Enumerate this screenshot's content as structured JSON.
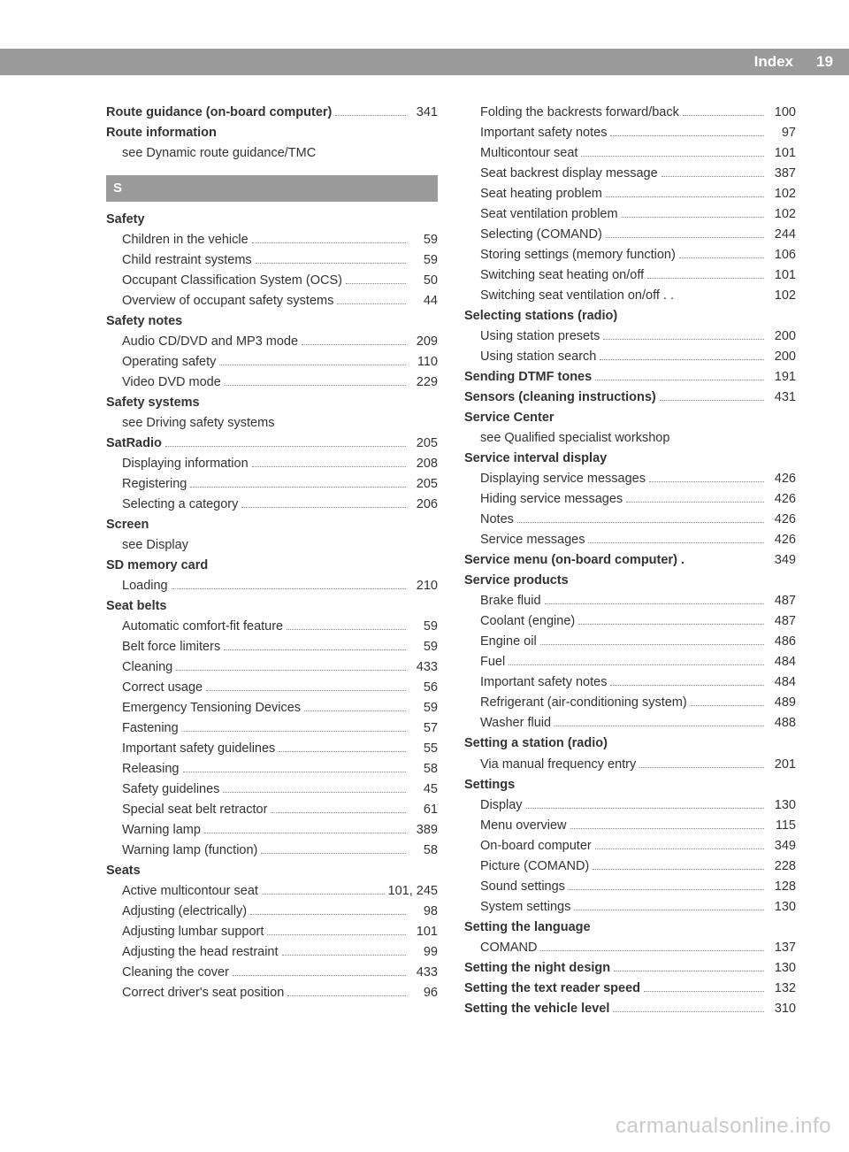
{
  "header": {
    "title": "Index",
    "page_number": "19"
  },
  "watermark": "carmanualsonline.info",
  "section_letter": "S",
  "col1": [
    {
      "t": "main-bold",
      "label": "Route guidance (on-board computer)",
      "page": "341"
    },
    {
      "t": "main-bold",
      "label": "Route information"
    },
    {
      "t": "sub",
      "label": "see Dynamic route guidance/TMC"
    },
    {
      "t": "letter",
      "label": "S"
    },
    {
      "t": "main-bold",
      "label": "Safety"
    },
    {
      "t": "sub",
      "label": "Children in the vehicle",
      "page": "59"
    },
    {
      "t": "sub",
      "label": "Child restraint systems",
      "page": "59"
    },
    {
      "t": "sub",
      "label": "Occupant Classification System (OCS)",
      "page": "50"
    },
    {
      "t": "sub",
      "label": "Overview of occupant safety systems",
      "page": "44"
    },
    {
      "t": "main-bold",
      "label": "Safety notes"
    },
    {
      "t": "sub",
      "label": "Audio CD/DVD and MP3 mode",
      "page": "209"
    },
    {
      "t": "sub",
      "label": "Operating safety",
      "page": "110"
    },
    {
      "t": "sub",
      "label": "Video DVD mode",
      "page": "229"
    },
    {
      "t": "main-bold",
      "label": "Safety systems"
    },
    {
      "t": "sub",
      "label": "see Driving safety systems"
    },
    {
      "t": "main-bold",
      "label": "SatRadio",
      "page": "205"
    },
    {
      "t": "sub",
      "label": "Displaying information",
      "page": "208"
    },
    {
      "t": "sub",
      "label": "Registering",
      "page": "205"
    },
    {
      "t": "sub",
      "label": "Selecting a category",
      "page": "206"
    },
    {
      "t": "main-bold",
      "label": "Screen"
    },
    {
      "t": "sub",
      "label": "see Display"
    },
    {
      "t": "main-bold",
      "label": "SD memory card"
    },
    {
      "t": "sub",
      "label": "Loading",
      "page": "210"
    },
    {
      "t": "main-bold",
      "label": "Seat belts"
    },
    {
      "t": "sub",
      "label": "Automatic comfort-fit feature",
      "page": "59"
    },
    {
      "t": "sub",
      "label": "Belt force limiters",
      "page": "59"
    },
    {
      "t": "sub",
      "label": "Cleaning",
      "page": "433"
    },
    {
      "t": "sub",
      "label": "Correct usage",
      "page": "56"
    },
    {
      "t": "sub",
      "label": "Emergency Tensioning Devices",
      "page": "59"
    },
    {
      "t": "sub",
      "label": "Fastening",
      "page": "57"
    },
    {
      "t": "sub",
      "label": "Important safety guidelines",
      "page": "55"
    },
    {
      "t": "sub",
      "label": "Releasing",
      "page": "58"
    },
    {
      "t": "sub",
      "label": "Safety guidelines",
      "page": "45"
    },
    {
      "t": "sub",
      "label": "Special seat belt retractor",
      "page": "61"
    },
    {
      "t": "sub",
      "label": "Warning lamp",
      "page": "389"
    },
    {
      "t": "sub",
      "label": "Warning lamp (function)",
      "page": "58"
    },
    {
      "t": "main-bold",
      "label": "Seats"
    },
    {
      "t": "sub",
      "label": "Active multicontour seat",
      "page": "101, 245"
    },
    {
      "t": "sub",
      "label": "Adjusting (electrically)",
      "page": "98"
    },
    {
      "t": "sub",
      "label": "Adjusting lumbar support",
      "page": "101"
    },
    {
      "t": "sub",
      "label": "Adjusting the head restraint",
      "page": "99"
    },
    {
      "t": "sub",
      "label": "Cleaning the cover",
      "page": "433"
    },
    {
      "t": "sub",
      "label": "Correct driver's seat position",
      "page": "96"
    }
  ],
  "col2": [
    {
      "t": "sub",
      "label": "Folding the backrests forward/back",
      "page": "100"
    },
    {
      "t": "sub",
      "label": "Important safety notes",
      "page": "97"
    },
    {
      "t": "sub",
      "label": "Multicontour seat",
      "page": "101"
    },
    {
      "t": "sub",
      "label": "Seat backrest display message",
      "page": "387"
    },
    {
      "t": "sub",
      "label": "Seat heating problem",
      "page": "102"
    },
    {
      "t": "sub",
      "label": "Seat ventilation problem",
      "page": "102"
    },
    {
      "t": "sub",
      "label": "Selecting (COMAND)",
      "page": "244"
    },
    {
      "t": "sub",
      "label": "Storing settings (memory function)",
      "page": "106"
    },
    {
      "t": "sub",
      "label": "Switching seat heating on/off",
      "page": "101"
    },
    {
      "t": "sub",
      "label": "Switching seat ventilation on/off . .",
      "page": "102",
      "nodots": true
    },
    {
      "t": "main-bold",
      "label": "Selecting stations (radio)"
    },
    {
      "t": "sub",
      "label": "Using station presets",
      "page": "200"
    },
    {
      "t": "sub",
      "label": "Using station search",
      "page": "200"
    },
    {
      "t": "main-bold",
      "label": "Sending DTMF tones",
      "page": "191"
    },
    {
      "t": "main-bold",
      "label": "Sensors (cleaning instructions)",
      "page": "431"
    },
    {
      "t": "main-bold",
      "label": "Service Center"
    },
    {
      "t": "sub",
      "label": "see Qualified specialist workshop"
    },
    {
      "t": "main-bold",
      "label": "Service interval display"
    },
    {
      "t": "sub",
      "label": "Displaying service messages",
      "page": "426"
    },
    {
      "t": "sub",
      "label": "Hiding service messages",
      "page": "426"
    },
    {
      "t": "sub",
      "label": "Notes",
      "page": "426"
    },
    {
      "t": "sub",
      "label": "Service messages",
      "page": "426"
    },
    {
      "t": "main-bold",
      "label": "Service menu (on-board computer) .",
      "page": "349",
      "nodots": true
    },
    {
      "t": "main-bold",
      "label": "Service products"
    },
    {
      "t": "sub",
      "label": "Brake fluid",
      "page": "487"
    },
    {
      "t": "sub",
      "label": "Coolant (engine)",
      "page": "487"
    },
    {
      "t": "sub",
      "label": "Engine oil",
      "page": "486"
    },
    {
      "t": "sub",
      "label": "Fuel",
      "page": "484"
    },
    {
      "t": "sub",
      "label": "Important safety notes",
      "page": "484"
    },
    {
      "t": "sub",
      "label": "Refrigerant (air-conditioning system)",
      "page": "489"
    },
    {
      "t": "sub",
      "label": "Washer fluid",
      "page": "488"
    },
    {
      "t": "main-bold",
      "label": "Setting a station (radio)"
    },
    {
      "t": "sub",
      "label": "Via manual frequency entry",
      "page": "201"
    },
    {
      "t": "main-bold",
      "label": "Settings"
    },
    {
      "t": "sub",
      "label": "Display",
      "page": "130"
    },
    {
      "t": "sub",
      "label": "Menu overview",
      "page": "115"
    },
    {
      "t": "sub",
      "label": "On-board computer",
      "page": "349"
    },
    {
      "t": "sub",
      "label": "Picture (COMAND)",
      "page": "228"
    },
    {
      "t": "sub",
      "label": "Sound settings",
      "page": "128"
    },
    {
      "t": "sub",
      "label": "System settings",
      "page": "130"
    },
    {
      "t": "main-bold",
      "label": "Setting the language"
    },
    {
      "t": "sub",
      "label": "COMAND",
      "page": "137"
    },
    {
      "t": "main-bold",
      "label": "Setting the night design",
      "page": "130"
    },
    {
      "t": "main-bold",
      "label": "Setting the text reader speed",
      "page": "132"
    },
    {
      "t": "main-bold",
      "label": "Setting the vehicle level",
      "page": "310"
    }
  ]
}
